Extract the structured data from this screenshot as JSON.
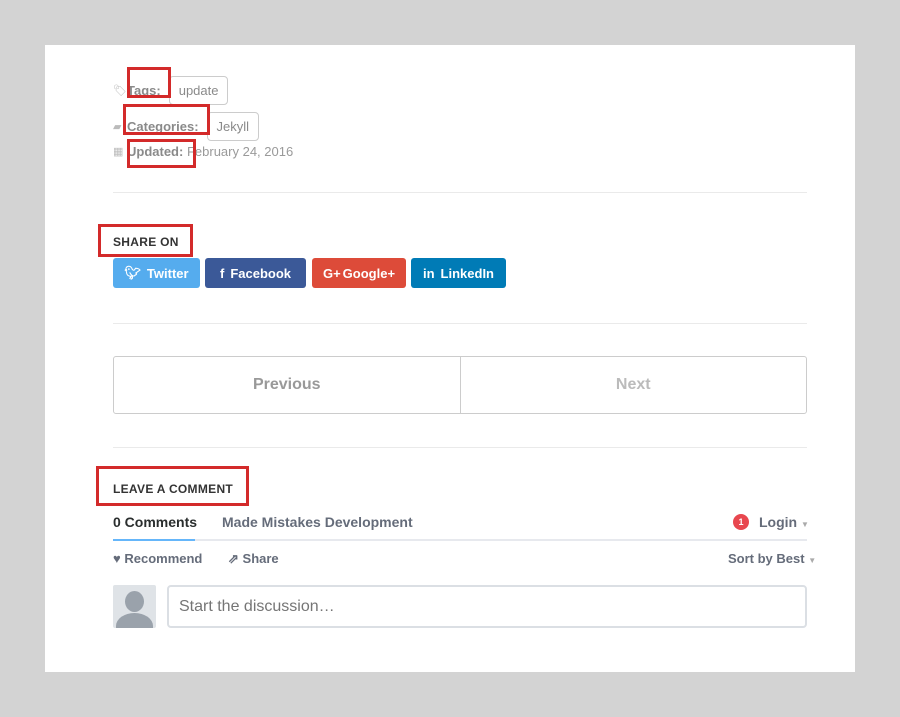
{
  "meta": {
    "tags_label": "Tags:",
    "tags": [
      "update"
    ],
    "categories_label": "Categories:",
    "categories": [
      "Jekyll"
    ],
    "updated_label": "Updated:",
    "updated_value": "February 24, 2016"
  },
  "share": {
    "title": "SHARE ON",
    "buttons": [
      {
        "label": "Twitter",
        "color": "#55acee"
      },
      {
        "label": "Facebook",
        "color": "#3b5998"
      },
      {
        "label": "Google+",
        "color": "#dd4b39"
      },
      {
        "label": "LinkedIn",
        "color": "#007bb6"
      }
    ]
  },
  "pagination": {
    "previous": "Previous",
    "next": "Next"
  },
  "comments": {
    "title": "LEAVE A COMMENT",
    "tab_count": "0 Comments",
    "tab_site": "Made Mistakes Development",
    "notification_count": "1",
    "login": "Login",
    "recommend": "Recommend",
    "share": "Share",
    "sort": "Sort by Best",
    "placeholder": "Start the discussion…"
  },
  "annotation_color": "#d32a2a"
}
